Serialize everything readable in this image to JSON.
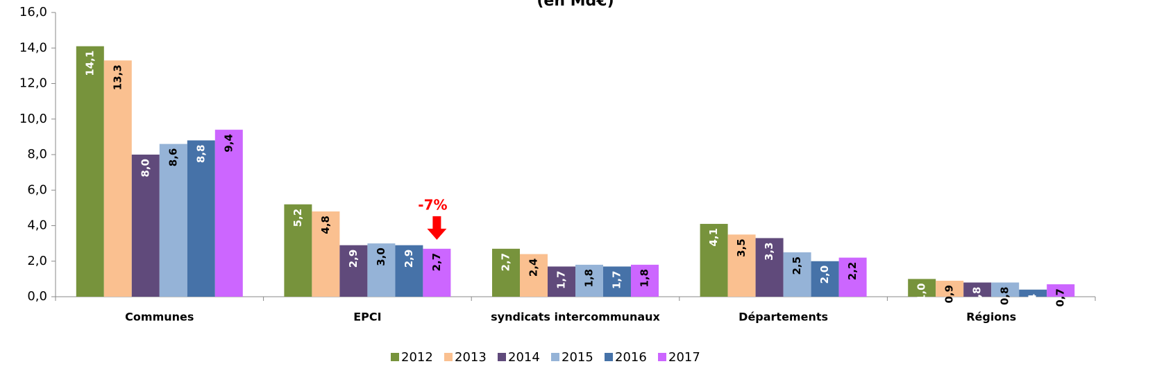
{
  "chart_data": {
    "type": "bar",
    "title": "(en Md€)",
    "categories": [
      "Communes",
      "EPCI",
      "syndicats intercommunaux",
      "Départements",
      "Régions"
    ],
    "series": [
      {
        "name": "2012",
        "color": "#77933c",
        "values": [
          14.1,
          5.2,
          2.7,
          4.1,
          1.0
        ],
        "value_labels": [
          "14,1",
          "5,2",
          "2,7",
          "4,1",
          "1,0"
        ]
      },
      {
        "name": "2013",
        "color": "#fac090",
        "values": [
          13.3,
          4.8,
          2.4,
          3.5,
          0.9
        ],
        "value_labels": [
          "13,3",
          "4,8",
          "2,4",
          "3,5",
          "0,9"
        ]
      },
      {
        "name": "2014",
        "color": "#604a7b",
        "values": [
          8.0,
          2.9,
          1.7,
          3.3,
          0.8
        ],
        "value_labels": [
          "8,0",
          "2,9",
          "1,7",
          "3,3",
          "0,8"
        ]
      },
      {
        "name": "2015",
        "color": "#95b3d7",
        "values": [
          8.6,
          3.0,
          1.8,
          2.5,
          0.8
        ],
        "value_labels": [
          "8,6",
          "3,0",
          "1,8",
          "2,5",
          "0,8"
        ]
      },
      {
        "name": "2016",
        "color": "#4672a8",
        "values": [
          8.8,
          2.9,
          1.7,
          2.0,
          0.4
        ],
        "value_labels": [
          "8,8",
          "2,9",
          "1,7",
          "2,0",
          "0,4"
        ]
      },
      {
        "name": "2017",
        "color": "#cc66ff",
        "values": [
          9.4,
          2.7,
          1.8,
          2.2,
          0.7
        ],
        "value_labels": [
          "9,4",
          "2,7",
          "1,8",
          "2,2",
          "0,7"
        ]
      }
    ],
    "ylim": [
      0,
      16
    ],
    "yticks": [
      {
        "value": 0,
        "label": "0,0"
      },
      {
        "value": 2,
        "label": "2,0"
      },
      {
        "value": 4,
        "label": "4,0"
      },
      {
        "value": 6,
        "label": "6,0"
      },
      {
        "value": 8,
        "label": "8,0"
      },
      {
        "value": 10,
        "label": "10,0"
      },
      {
        "value": 12,
        "label": "12,0"
      },
      {
        "value": 14,
        "label": "14,0"
      },
      {
        "value": 16,
        "label": "16,0"
      }
    ],
    "annotation": "-7%",
    "legend": "bottom"
  }
}
